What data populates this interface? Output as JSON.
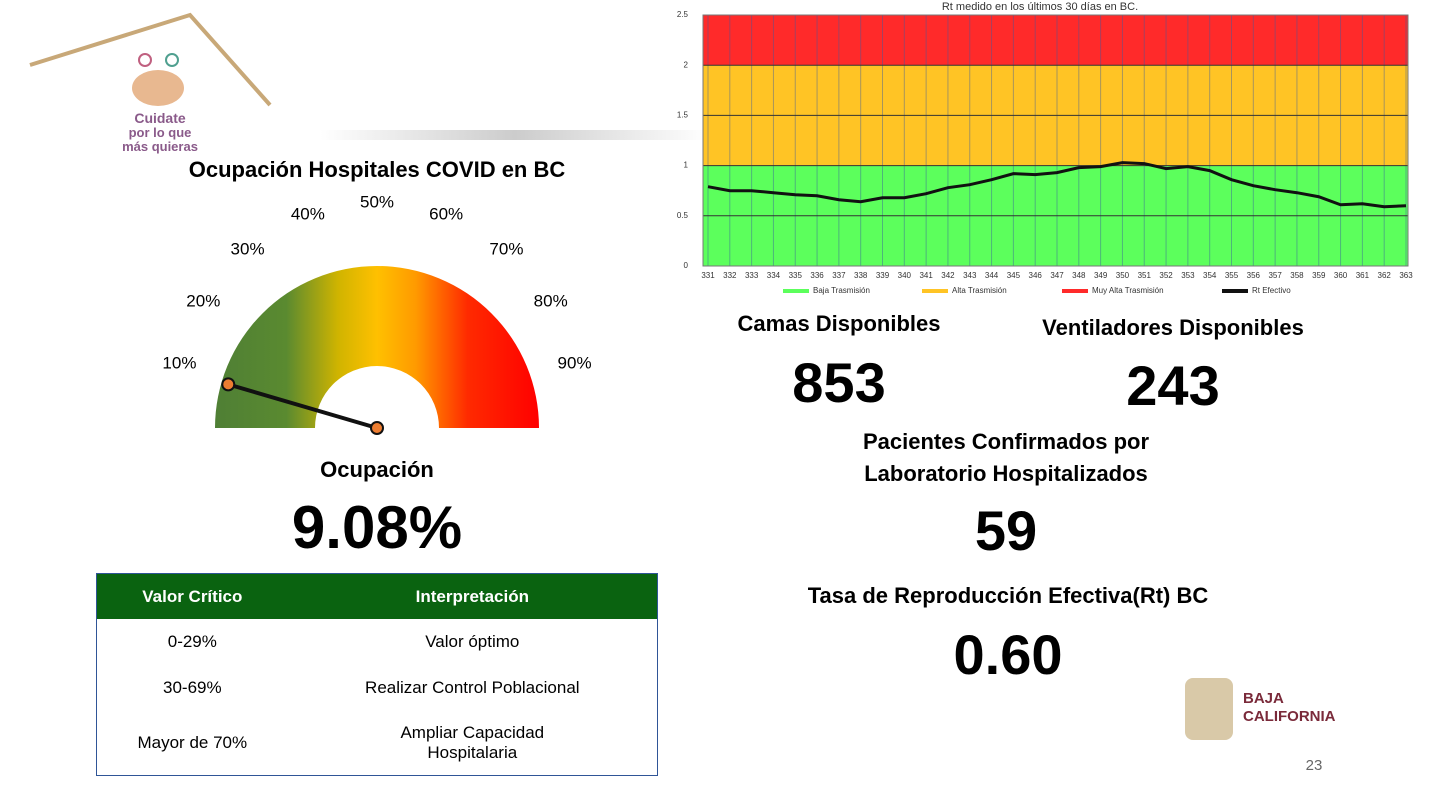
{
  "chart_data": [
    {
      "type": "gauge",
      "title": "Ocupación Hospitales COVID en BC",
      "label": "Ocupación",
      "value": 9.08,
      "value_label": "9.08%",
      "ylim": [
        0,
        100
      ],
      "yticks": [
        {
          "value": 10,
          "label": "10%"
        },
        {
          "value": 20,
          "label": "20%"
        },
        {
          "value": 30,
          "label": "30%"
        },
        {
          "value": 40,
          "label": "40%"
        },
        {
          "value": 50,
          "label": "50%"
        },
        {
          "value": 60,
          "label": "60%"
        },
        {
          "value": 70,
          "label": "70%"
        },
        {
          "value": 80,
          "label": "80%"
        },
        {
          "value": 90,
          "label": "90%"
        }
      ]
    },
    {
      "type": "line",
      "title": "Rt medido en los últimos 30 días en BC.",
      "categories": [
        "331",
        "332",
        "333",
        "334",
        "335",
        "336",
        "337",
        "338",
        "339",
        "340",
        "341",
        "342",
        "343",
        "344",
        "345",
        "346",
        "347",
        "348",
        "349",
        "350",
        "351",
        "352",
        "353",
        "354",
        "355",
        "356",
        "357",
        "358",
        "359",
        "360",
        "361",
        "362",
        "363"
      ],
      "ylim": [
        0,
        2.5
      ],
      "yticks": [
        0,
        0.5,
        1,
        1.5,
        2,
        2.5
      ],
      "grid": true,
      "bands": [
        {
          "name": "Baja Trasmisión",
          "color": "#5cff5c",
          "from": 0,
          "to": 1
        },
        {
          "name": "Alta Trasmisión",
          "color": "#ffc425",
          "from": 1,
          "to": 2
        },
        {
          "name": "Muy Alta Trasmisión",
          "color": "#ff2a2a",
          "from": 2,
          "to": 2.5
        }
      ],
      "series": [
        {
          "name": "Rt Efectivo",
          "color": "#111111",
          "values": [
            0.79,
            0.75,
            0.75,
            0.73,
            0.71,
            0.7,
            0.66,
            0.64,
            0.68,
            0.68,
            0.72,
            0.78,
            0.81,
            0.86,
            0.92,
            0.91,
            0.93,
            0.98,
            0.99,
            1.03,
            1.02,
            0.97,
            0.99,
            0.95,
            0.86,
            0.8,
            0.76,
            0.73,
            0.69,
            0.61,
            0.62,
            0.59,
            0.6
          ]
        }
      ]
    }
  ],
  "stats": [
    {
      "label": "Camas Disponibles",
      "value": 853
    },
    {
      "label": "Ventiladores Disponibles",
      "value": 243
    },
    {
      "label": "Pacientes Confirmados por Laboratorio Hospitalizados",
      "value": 59
    },
    {
      "label": "Tasa de Reproducción Efectiva(Rt) BC",
      "value": "0.60"
    }
  ],
  "table": {
    "header": [
      "Valor Crítico",
      "Interpretación"
    ],
    "rows": [
      [
        "0-29%",
        "Valor óptimo"
      ],
      [
        "30-69%",
        "Realizar Control Poblacional"
      ],
      [
        "Mayor de 70%",
        "Ampliar Capacidad Hospitalaria"
      ]
    ]
  },
  "logo": {
    "line1": "Cuidate",
    "line2": "por lo que",
    "line3": "más quieras"
  },
  "state_logo": {
    "line1": "BAJA",
    "line2": "CALIFORNIA"
  },
  "page_number": 23
}
